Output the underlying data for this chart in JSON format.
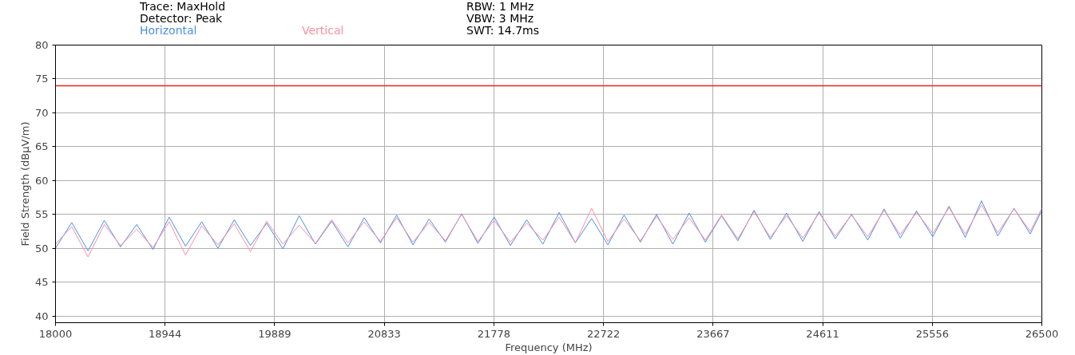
{
  "chart_data": {
    "type": "line",
    "xlabel": "Frequency (MHz)",
    "ylabel": "Field Strength (dBµV/m)",
    "annotations": [
      "Trace: MaxHold",
      "Detector: Peak",
      "RBW: 1 MHz",
      "VBW: 3 MHz",
      "SWT: 14.7ms"
    ],
    "x": [
      18000,
      18140,
      18280,
      18420,
      18560,
      18700,
      18840,
      18980,
      19120,
      19260,
      19400,
      19540,
      19680,
      19820,
      19960,
      20100,
      20240,
      20380,
      20520,
      20660,
      20800,
      20940,
      21080,
      21220,
      21360,
      21500,
      21640,
      21780,
      21920,
      22060,
      22200,
      22340,
      22480,
      22620,
      22760,
      22900,
      23040,
      23180,
      23320,
      23460,
      23600,
      23740,
      23880,
      24020,
      24160,
      24300,
      24440,
      24580,
      24720,
      24860,
      25000,
      25140,
      25280,
      25420,
      25560,
      25700,
      25840,
      25980,
      26120,
      26260,
      26400,
      26500
    ],
    "series": [
      {
        "name": "Horizontal",
        "color": "#4a8fe7",
        "values": [
          50.0,
          53.8,
          49.6,
          54.1,
          50.2,
          53.5,
          49.8,
          54.6,
          50.3,
          53.9,
          50.0,
          54.2,
          50.4,
          53.7,
          49.9,
          54.8,
          50.6,
          54.0,
          50.2,
          54.5,
          50.8,
          54.9,
          50.5,
          54.3,
          50.9,
          55.1,
          50.7,
          54.6,
          50.4,
          54.2,
          50.6,
          55.3,
          50.8,
          54.4,
          50.5,
          54.9,
          50.9,
          55.0,
          50.6,
          55.2,
          50.9,
          54.8,
          51.1,
          55.6,
          51.3,
          55.2,
          51.0,
          55.4,
          51.4,
          55.0,
          51.2,
          55.8,
          51.5,
          55.5,
          51.7,
          56.2,
          51.6,
          57.0,
          51.8,
          55.9,
          52.1,
          55.6
        ]
      },
      {
        "name": "Vertical",
        "color": "#ff8da1",
        "values": [
          50.6,
          53.2,
          48.7,
          53.5,
          50.4,
          52.8,
          50.1,
          53.9,
          49.0,
          53.3,
          50.5,
          53.6,
          49.5,
          54.0,
          50.6,
          53.4,
          50.7,
          54.2,
          50.8,
          53.9,
          51.0,
          54.5,
          50.9,
          53.8,
          51.1,
          55.0,
          51.0,
          54.1,
          50.9,
          53.7,
          51.2,
          54.6,
          50.8,
          55.9,
          51.0,
          54.3,
          51.1,
          54.7,
          51.3,
          54.5,
          51.2,
          54.9,
          51.4,
          55.4,
          51.6,
          54.8,
          51.5,
          55.2,
          51.8,
          54.9,
          51.7,
          55.6,
          52.0,
          55.3,
          52.2,
          56.0,
          52.1,
          56.4,
          52.3,
          55.8,
          52.5,
          55.9
        ]
      }
    ],
    "ref_lines": [
      {
        "axis": "y",
        "value": 74,
        "color": "#e8261c"
      }
    ],
    "xlim": [
      18000,
      26500
    ],
    "xticks": [
      18000,
      18944,
      19889,
      20833,
      21778,
      22722,
      23667,
      24611,
      25556,
      26500
    ],
    "ylim": [
      39,
      80
    ],
    "yticks": [
      40,
      45,
      50,
      55,
      60,
      65,
      70,
      75,
      80
    ],
    "grid": true,
    "legend": "top",
    "line_style": "solid",
    "marker": "none"
  }
}
